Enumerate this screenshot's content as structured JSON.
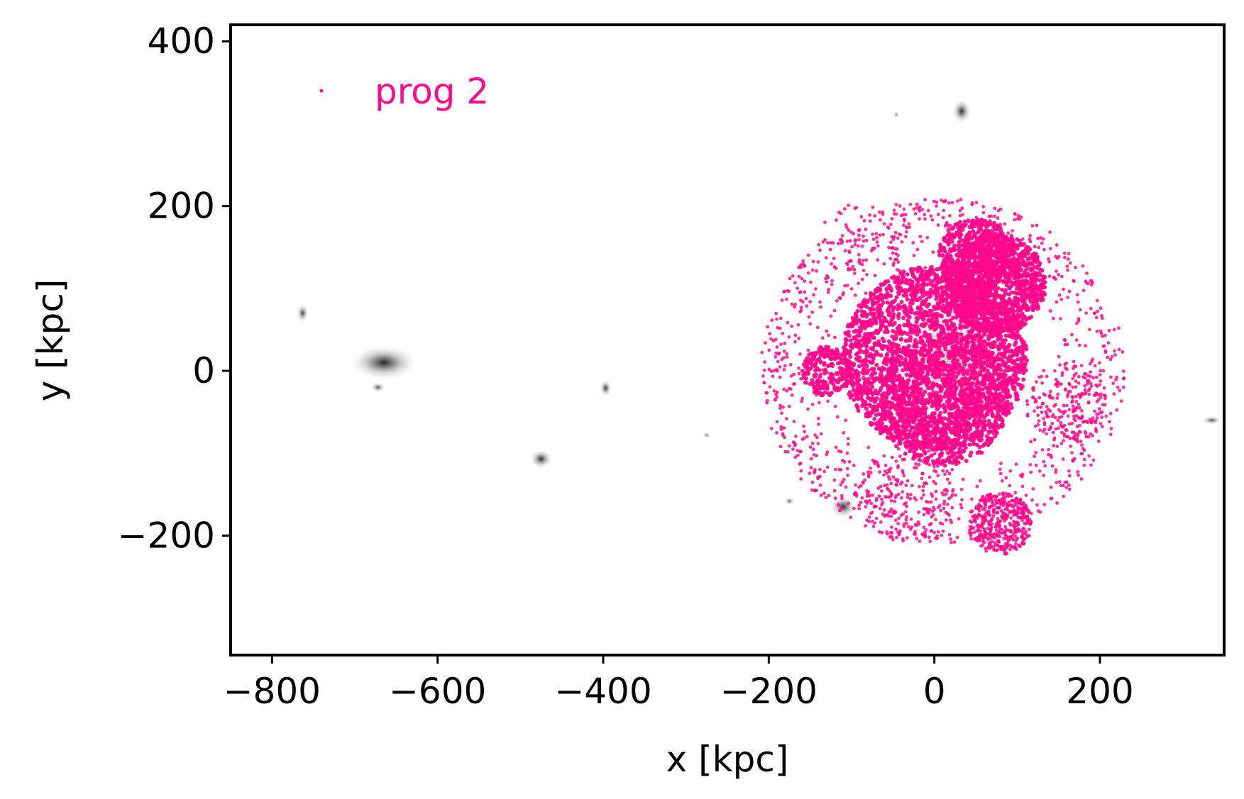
{
  "chart_data": {
    "type": "scatter",
    "xlabel": "x [kpc]",
    "ylabel": "y [kpc]",
    "xlim": [
      -850,
      350
    ],
    "ylim": [
      -345,
      420
    ],
    "x_ticks": [
      -800,
      -600,
      -400,
      -200,
      0,
      200
    ],
    "y_ticks": [
      -200,
      0,
      200,
      400
    ],
    "x_tick_labels": [
      "−800",
      "−600",
      "−400",
      "−200",
      "0",
      "200"
    ],
    "y_tick_labels": [
      "−200",
      "0",
      "200",
      "400"
    ],
    "grid": false,
    "legend": {
      "placement": "top-left",
      "entries": [
        "prog 2"
      ]
    },
    "colors": {
      "series": "#ff0a8c",
      "background_map": "#6e6e6e"
    },
    "background_sources": [
      {
        "x": -665,
        "y": 10,
        "peak": 0.9,
        "extent": [
          38,
          20
        ]
      },
      {
        "x": -672,
        "y": -20,
        "peak": 0.7,
        "extent": [
          8,
          6
        ]
      },
      {
        "x": -763,
        "y": 70,
        "peak": 0.75,
        "extent": [
          7,
          11
        ]
      },
      {
        "x": -397,
        "y": -21,
        "peak": 0.8,
        "extent": [
          7,
          10
        ]
      },
      {
        "x": -475,
        "y": -107,
        "peak": 0.85,
        "extent": [
          13,
          11
        ]
      },
      {
        "x": -110,
        "y": -165,
        "peak": 0.85,
        "extent": [
          15,
          13
        ]
      },
      {
        "x": -175,
        "y": -158,
        "peak": 0.6,
        "extent": [
          6,
          5
        ]
      },
      {
        "x": 33,
        "y": 315,
        "peak": 0.85,
        "extent": [
          11,
          14
        ]
      },
      {
        "x": -46,
        "y": 311,
        "peak": 0.5,
        "extent": [
          4,
          4
        ]
      },
      {
        "x": 335,
        "y": -60,
        "peak": 0.7,
        "extent": [
          12,
          5
        ]
      },
      {
        "x": -275,
        "y": -78,
        "peak": 0.5,
        "extent": [
          5,
          4
        ]
      },
      {
        "x": 20,
        "y": 10,
        "peak": 0.25,
        "extent": [
          110,
          100
        ]
      }
    ],
    "series": [
      {
        "name": "prog 2",
        "clusters": [
          {
            "cx": 0,
            "cy": 15,
            "r": 112,
            "n": 2600
          },
          {
            "cx": 10,
            "cy": -35,
            "r": 80,
            "n": 900
          },
          {
            "cx": 75,
            "cy": 105,
            "r": 60,
            "n": 1100
          },
          {
            "cx": 50,
            "cy": 140,
            "r": 45,
            "n": 500
          },
          {
            "cx": -130,
            "cy": 0,
            "r": 30,
            "n": 200
          }
        ],
        "halo": [
          {
            "cx": 10,
            "cy": 0,
            "rmin": 130,
            "rmax": 220,
            "n": 900
          },
          {
            "cx": 80,
            "cy": -185,
            "r": 38,
            "n": 420
          },
          {
            "cx": -90,
            "cy": 155,
            "r": 50,
            "n": 60
          },
          {
            "cx": 160,
            "cy": -40,
            "r": 50,
            "n": 200
          },
          {
            "cx": -30,
            "cy": -150,
            "r": 60,
            "n": 200
          }
        ]
      }
    ]
  }
}
